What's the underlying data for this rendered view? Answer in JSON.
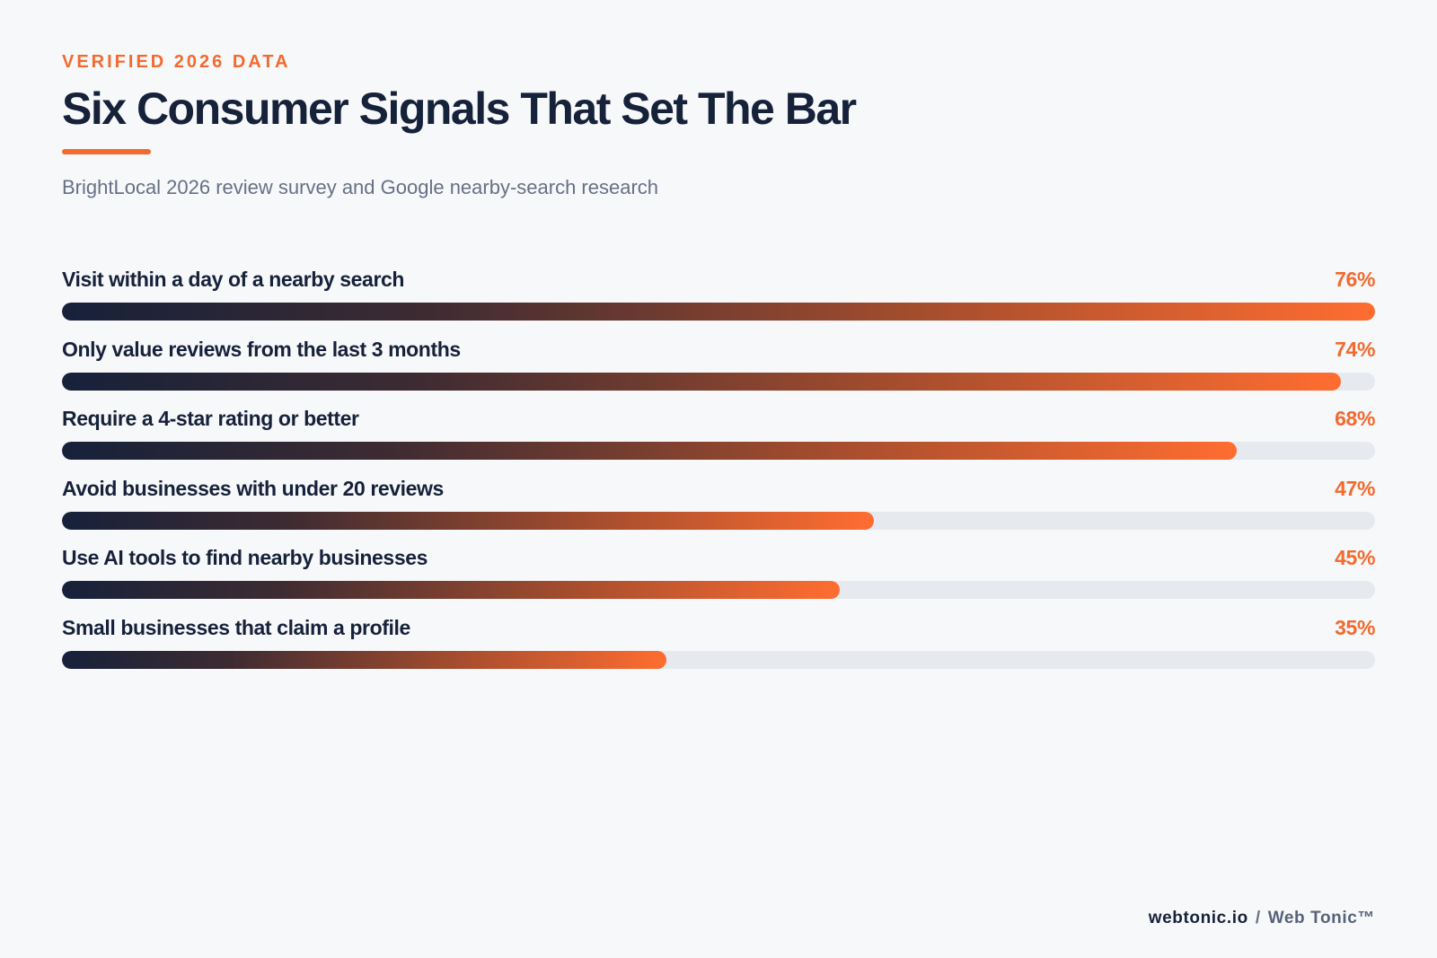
{
  "header": {
    "eyebrow": "VERIFIED 2026 DATA",
    "title": "Six Consumer Signals That Set The Bar",
    "subtitle": "BrightLocal 2026 review survey and Google nearby-search research"
  },
  "chart_data": {
    "type": "bar",
    "orientation": "horizontal",
    "title": "Six Consumer Signals That Set The Bar",
    "subtitle": "BrightLocal 2026 review survey and Google nearby-search research",
    "categories": [
      "Visit within a day of a nearby search",
      "Only value reviews from the last 3 months",
      "Require a 4-star rating or better",
      "Avoid businesses with under 20 reviews",
      "Use AI tools to find nearby businesses",
      "Small businesses that claim a profile"
    ],
    "values": [
      76,
      74,
      68,
      47,
      45,
      35
    ],
    "value_labels": [
      "76%",
      "74%",
      "68%",
      "47%",
      "45%",
      "35%"
    ],
    "unit": "%",
    "xlim": [
      0,
      76
    ],
    "grid": false,
    "legend": "none",
    "colors": {
      "start": "#16213a",
      "end": "#ff6d30",
      "track": "#e6e9ee",
      "label": "#16213a",
      "value": "#f26a2e"
    }
  },
  "footer": {
    "site": "webtonic.io",
    "separator": "/",
    "brand": "Web Tonic™"
  }
}
